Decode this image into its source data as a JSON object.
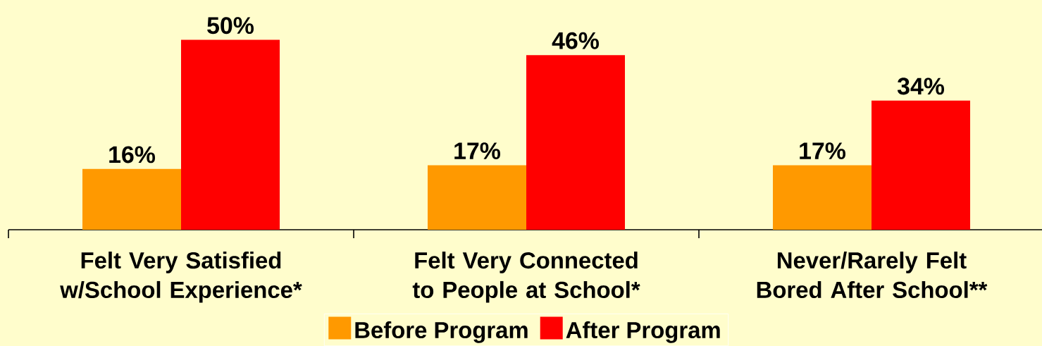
{
  "chart_data": {
    "type": "bar",
    "categories": [
      "Felt Very Satisfied w/School Experience*",
      "Felt Very Connected to People at School*",
      "Never/Rarely Felt Bored After School**"
    ],
    "series": [
      {
        "name": "Before Program",
        "color": "#ff9900",
        "values": [
          16,
          17,
          17
        ],
        "value_labels": [
          "16%",
          "17%",
          "17%"
        ]
      },
      {
        "name": "After Program",
        "color": "#ff0000",
        "values": [
          50,
          46,
          34
        ],
        "value_labels": [
          "50%",
          "46%",
          "34%"
        ]
      }
    ],
    "legend": "bottom"
  }
}
